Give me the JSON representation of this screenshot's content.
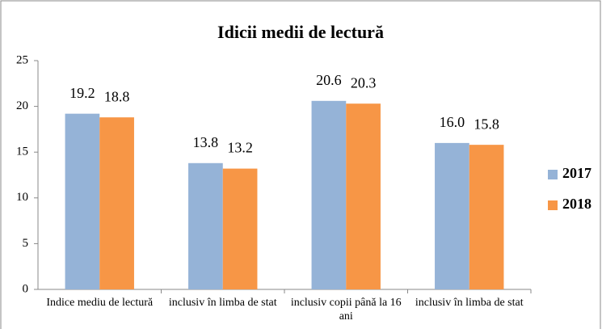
{
  "chart_data": {
    "type": "bar",
    "title": "Idicii medii de lectură",
    "categories": [
      "Indice mediu de lectură",
      "inclusiv în limba de stat",
      "inclusiv copii până la 16 ani",
      "inclusiv în limba de stat"
    ],
    "series": [
      {
        "name": "2017",
        "color": "#95b3d7",
        "values": [
          19.2,
          13.8,
          20.6,
          16.0
        ],
        "value_labels": [
          "19.2",
          "13.8",
          "20.6",
          "16.0"
        ]
      },
      {
        "name": "2018",
        "color": "#f79646",
        "values": [
          18.8,
          13.2,
          20.3,
          15.8
        ],
        "value_labels": [
          "18.8",
          "13.2",
          "20.3",
          "15.8"
        ]
      }
    ],
    "ylim": [
      0,
      25
    ],
    "yticks": [
      0,
      5,
      10,
      15,
      20,
      25
    ],
    "grid": false,
    "legend": "right"
  }
}
